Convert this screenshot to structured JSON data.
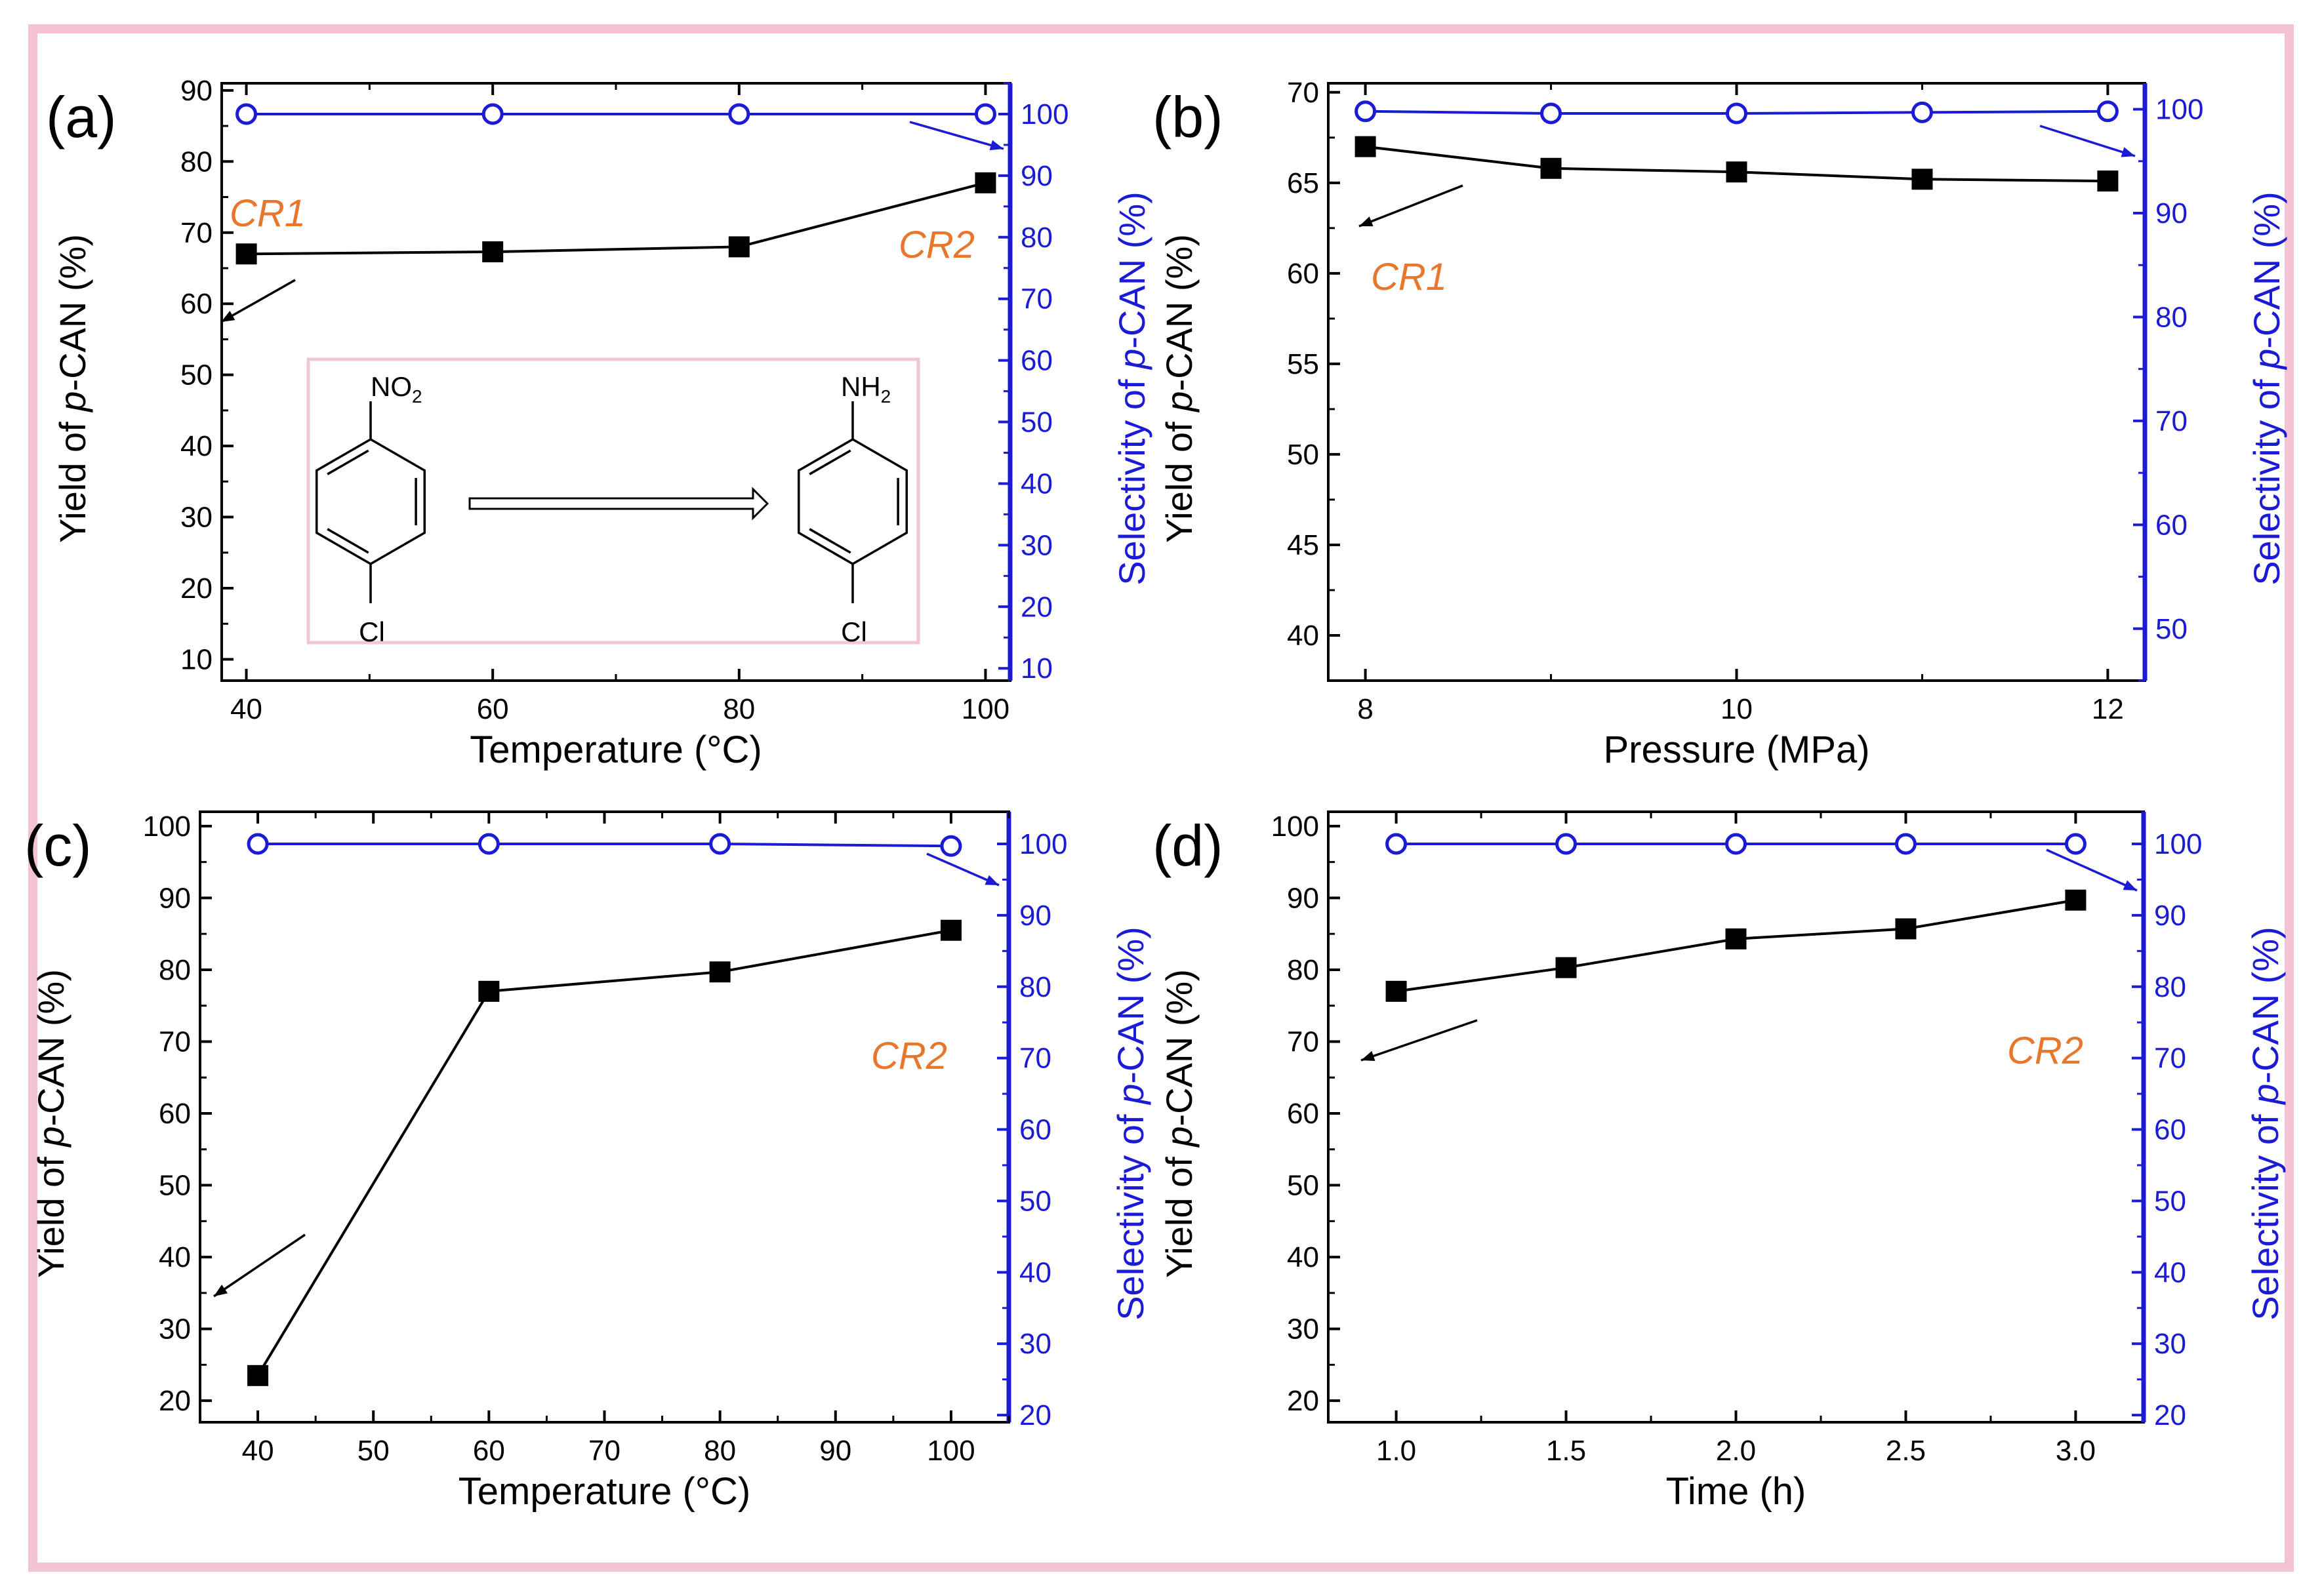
{
  "colors": {
    "frame": "#f4c3d3",
    "yield_series": "#000000",
    "selectivity_series": "#1b1bd6",
    "annotation": "#e8772e",
    "scheme_border": "#f0c8d4"
  },
  "chart_data": [
    {
      "panel_label": "(a)",
      "type": "line",
      "xlabel": "Temperature (°C)",
      "ylabel_parts": [
        "Yield of ",
        "p",
        "-CAN (%)"
      ],
      "y2label_parts": [
        "Selectivity of ",
        "p",
        "-CAN (%)"
      ],
      "xlim": [
        38,
        102
      ],
      "xticks": [
        40,
        60,
        80,
        100
      ],
      "xtick_labels": [
        "40",
        "60",
        "80",
        "100"
      ],
      "xminor_step": 10,
      "ylim": [
        7,
        91
      ],
      "yticks": [
        10,
        20,
        30,
        40,
        50,
        60,
        70,
        80,
        90
      ],
      "ytick_labels": [
        "10",
        "20",
        "30",
        "40",
        "50",
        "60",
        "70",
        "80",
        "90"
      ],
      "yminor_step": 5,
      "y2lim": [
        8,
        105
      ],
      "y2ticks": [
        10,
        20,
        30,
        40,
        50,
        60,
        70,
        80,
        90,
        100
      ],
      "y2tick_labels": [
        "10",
        "20",
        "30",
        "40",
        "50",
        "60",
        "70",
        "80",
        "90",
        "100"
      ],
      "y2minor_step": 5,
      "series": [
        {
          "name": "Yield",
          "axis": "left",
          "marker": "square",
          "x": [
            40,
            60,
            80,
            100
          ],
          "values": [
            67,
            67.3,
            68,
            77
          ]
        },
        {
          "name": "Selectivity",
          "axis": "right",
          "marker": "circle",
          "x": [
            40,
            60,
            80,
            100
          ],
          "values": [
            100,
            100,
            100,
            100
          ]
        }
      ],
      "annotations": [
        "CR1",
        "CR2"
      ],
      "inset_scheme": {
        "reactant_group": "NO",
        "reactant_sub": "2",
        "product_group": "NH",
        "product_sub": "2",
        "halogen": "Cl"
      }
    },
    {
      "panel_label": "(b)",
      "type": "line",
      "xlabel": "Pressure (MPa)",
      "ylabel_parts": [
        "Yield of ",
        "p",
        "-CAN (%)"
      ],
      "y2label_parts": [
        "Selectivity of ",
        "p",
        "-CAN (%)"
      ],
      "xlim": [
        7.8,
        12.2
      ],
      "xticks": [
        8,
        10,
        12
      ],
      "xtick_labels": [
        "8",
        "10",
        "12"
      ],
      "xminor_step": 1,
      "ylim": [
        37.5,
        70.5
      ],
      "yticks": [
        40,
        45,
        50,
        55,
        60,
        65,
        70
      ],
      "ytick_labels": [
        "40",
        "45",
        "50",
        "55",
        "60",
        "65",
        "70"
      ],
      "yminor_step": 2.5,
      "y2lim": [
        45,
        102.5
      ],
      "y2ticks": [
        50,
        60,
        70,
        80,
        90,
        100
      ],
      "y2tick_labels": [
        "50",
        "60",
        "70",
        "80",
        "90",
        "100"
      ],
      "y2minor_step": 5,
      "series": [
        {
          "name": "Yield",
          "axis": "left",
          "marker": "square",
          "x": [
            8,
            9,
            10,
            11,
            12
          ],
          "values": [
            67,
            65.8,
            65.6,
            65.2,
            65.1
          ]
        },
        {
          "name": "Selectivity",
          "axis": "right",
          "marker": "circle",
          "x": [
            8,
            9,
            10,
            11,
            12
          ],
          "values": [
            99.8,
            99.6,
            99.6,
            99.7,
            99.8
          ]
        }
      ],
      "annotations": [
        "CR1"
      ]
    },
    {
      "panel_label": "(c)",
      "type": "line",
      "xlabel": "Temperature (°C)",
      "ylabel_parts": [
        "Yield of ",
        "p",
        "-CAN (%)"
      ],
      "y2label_parts": [
        "Selectivity of ",
        "p",
        "-CAN (%)"
      ],
      "xlim": [
        35,
        105
      ],
      "xticks": [
        40,
        50,
        60,
        70,
        80,
        90,
        100
      ],
      "xtick_labels": [
        "40",
        "50",
        "60",
        "70",
        "80",
        "90",
        "100"
      ],
      "xminor_step": 5,
      "ylim": [
        17,
        102
      ],
      "yticks": [
        20,
        30,
        40,
        50,
        60,
        70,
        80,
        90,
        100
      ],
      "ytick_labels": [
        "20",
        "30",
        "40",
        "50",
        "60",
        "70",
        "80",
        "90",
        "100"
      ],
      "yminor_step": 5,
      "y2lim": [
        19,
        104.5
      ],
      "y2ticks": [
        20,
        30,
        40,
        50,
        60,
        70,
        80,
        90,
        100
      ],
      "y2tick_labels": [
        "20",
        "30",
        "40",
        "50",
        "60",
        "70",
        "80",
        "90",
        "100"
      ],
      "y2minor_step": 5,
      "series": [
        {
          "name": "Yield",
          "axis": "left",
          "marker": "square",
          "x": [
            40,
            60,
            80,
            100
          ],
          "values": [
            23.5,
            77,
            79.7,
            85.5
          ]
        },
        {
          "name": "Selectivity",
          "axis": "right",
          "marker": "circle",
          "x": [
            40,
            60,
            80,
            100
          ],
          "values": [
            100,
            100,
            100,
            99.7
          ]
        }
      ],
      "annotations": [
        "CR2"
      ]
    },
    {
      "panel_label": "(d)",
      "type": "line",
      "xlabel": "Time (h)",
      "ylabel_parts": [
        "Yield of ",
        "p",
        "-CAN (%)"
      ],
      "y2label_parts": [
        "Selectivity of ",
        "p",
        "-CAN (%)"
      ],
      "xlim": [
        0.8,
        3.2
      ],
      "xticks": [
        1.0,
        1.5,
        2.0,
        2.5,
        3.0
      ],
      "xtick_labels": [
        "1.0",
        "1.5",
        "2.0",
        "2.5",
        "3.0"
      ],
      "xminor_step": 0.25,
      "ylim": [
        17,
        102
      ],
      "yticks": [
        20,
        30,
        40,
        50,
        60,
        70,
        80,
        90,
        100
      ],
      "ytick_labels": [
        "20",
        "30",
        "40",
        "50",
        "60",
        "70",
        "80",
        "90",
        "100"
      ],
      "yminor_step": 5,
      "y2lim": [
        19,
        104.5
      ],
      "y2ticks": [
        20,
        30,
        40,
        50,
        60,
        70,
        80,
        90,
        100
      ],
      "y2tick_labels": [
        "20",
        "30",
        "40",
        "50",
        "60",
        "70",
        "80",
        "90",
        "100"
      ],
      "y2minor_step": 5,
      "series": [
        {
          "name": "Yield",
          "axis": "left",
          "marker": "square",
          "x": [
            1.0,
            1.5,
            2.0,
            2.5,
            3.0
          ],
          "values": [
            77,
            80.3,
            84.3,
            85.7,
            89.7
          ]
        },
        {
          "name": "Selectivity",
          "axis": "right",
          "marker": "circle",
          "x": [
            1.0,
            1.5,
            2.0,
            2.5,
            3.0
          ],
          "values": [
            100,
            100,
            100,
            100,
            100
          ]
        }
      ],
      "annotations": [
        "CR2"
      ]
    }
  ]
}
